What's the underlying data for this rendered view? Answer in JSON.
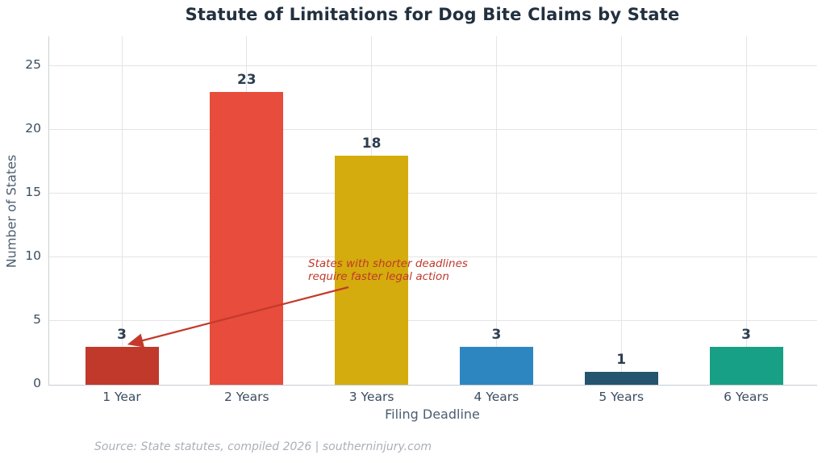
{
  "chart_data": {
    "type": "bar",
    "title": "Statute of Limitations for Dog Bite Claims by State",
    "xlabel": "Filing Deadline",
    "ylabel": "Number of States",
    "categories": [
      "1 Year",
      "2 Years",
      "3 Years",
      "4 Years",
      "5 Years",
      "6 Years"
    ],
    "values": [
      3,
      23,
      18,
      3,
      1,
      3
    ],
    "bar_colors": [
      "#c0392b",
      "#e74c3c",
      "#d4ac0d",
      "#2e86c1",
      "#24546e",
      "#17a085"
    ],
    "value_label_color": "#2c3e50",
    "yticks": [
      0,
      5,
      10,
      15,
      20,
      25
    ],
    "ylim": [
      0,
      27.3
    ],
    "grid": "both",
    "legend": "none",
    "annotation": {
      "lines": [
        "States with shorter deadlines",
        "require faster legal action"
      ],
      "color": "#c0392b",
      "target_category": "1 Year",
      "target_value": 3
    }
  },
  "footer": {
    "source": "Source: State statutes, compiled 2026 | southerninjury.com"
  }
}
